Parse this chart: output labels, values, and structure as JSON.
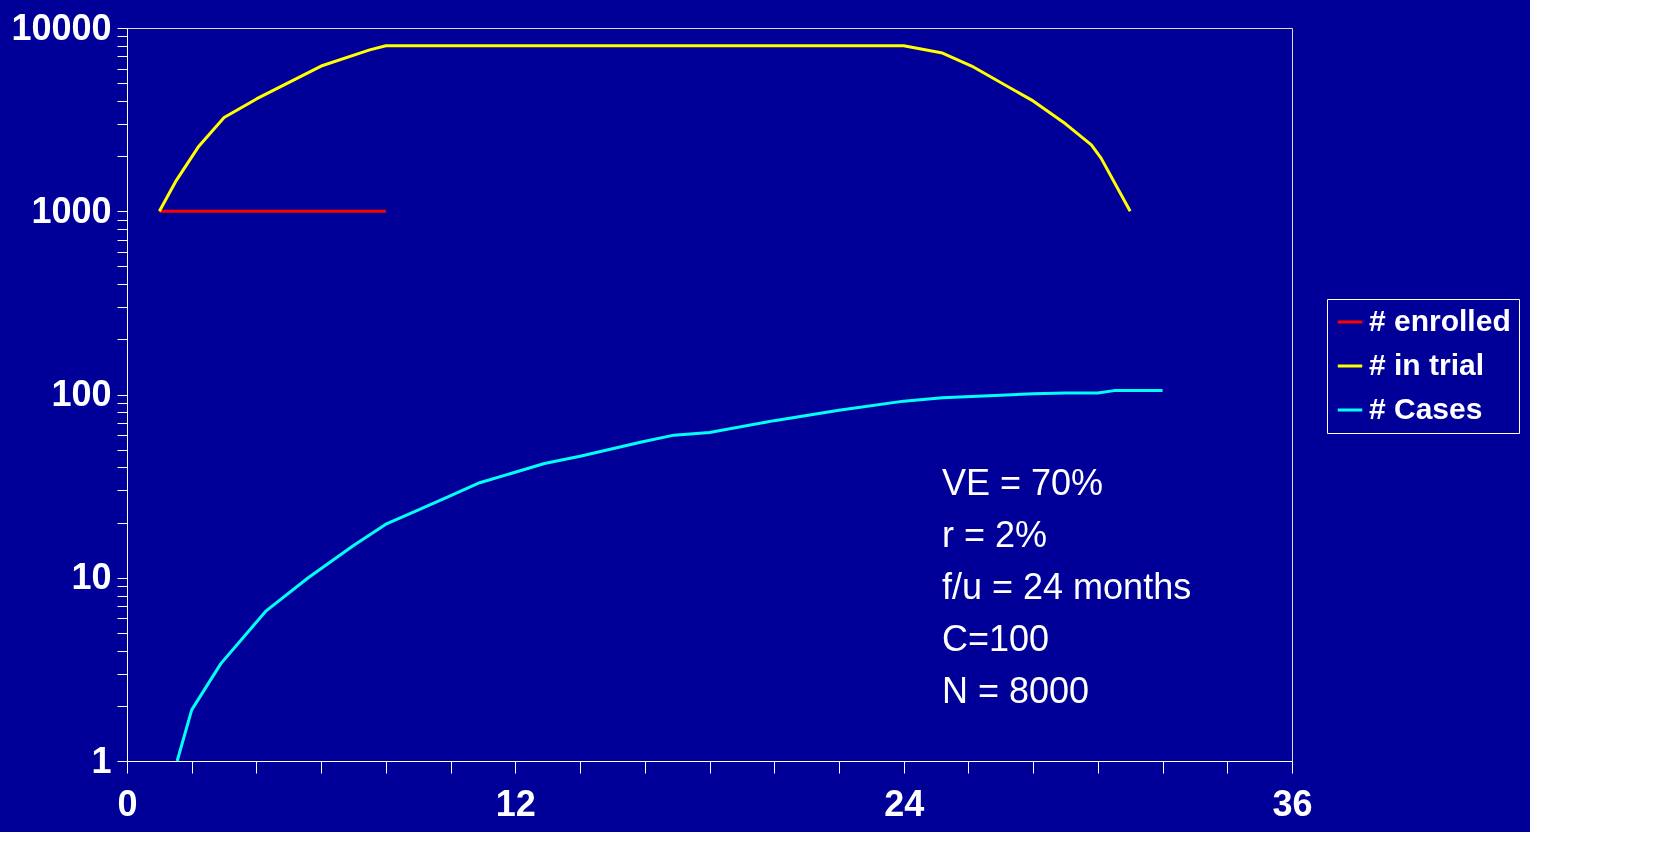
{
  "chart_data": {
    "type": "line",
    "xlim": [
      0,
      36
    ],
    "xticks": [
      0,
      {
        "value": 2,
        "label": null
      },
      {
        "value": 4,
        "label": null
      },
      {
        "value": 6,
        "label": null
      },
      {
        "value": 8,
        "label": null
      },
      {
        "value": 10,
        "label": null
      },
      12,
      {
        "value": 14,
        "label": null
      },
      {
        "value": 16,
        "label": null
      },
      {
        "value": 18,
        "label": null
      },
      {
        "value": 20,
        "label": null
      },
      {
        "value": 22,
        "label": null
      },
      24,
      {
        "value": 26,
        "label": null
      },
      {
        "value": 28,
        "label": null
      },
      {
        "value": 30,
        "label": null
      },
      {
        "value": 32,
        "label": null
      },
      {
        "value": 34,
        "label": null
      },
      36
    ],
    "ylim": [
      1,
      10000
    ],
    "yticks": [
      1,
      {
        "value": 2,
        "label": null
      },
      {
        "value": 3,
        "label": null
      },
      {
        "value": 4,
        "label": null
      },
      {
        "value": 5,
        "label": null
      },
      {
        "value": 6,
        "label": null
      },
      {
        "value": 7,
        "label": null
      },
      {
        "value": 8,
        "label": null
      },
      {
        "value": 9,
        "label": null
      },
      10,
      {
        "value": 20,
        "label": null
      },
      {
        "value": 30,
        "label": null
      },
      {
        "value": 40,
        "label": null
      },
      {
        "value": 50,
        "label": null
      },
      {
        "value": 60,
        "label": null
      },
      {
        "value": 70,
        "label": null
      },
      {
        "value": 80,
        "label": null
      },
      {
        "value": 90,
        "label": null
      },
      100,
      {
        "value": 200,
        "label": null
      },
      {
        "value": 300,
        "label": null
      },
      {
        "value": 400,
        "label": null
      },
      {
        "value": 500,
        "label": null
      },
      {
        "value": 600,
        "label": null
      },
      {
        "value": 700,
        "label": null
      },
      {
        "value": 800,
        "label": null
      },
      {
        "value": 900,
        "label": null
      },
      1000,
      {
        "value": 2000,
        "label": null
      },
      {
        "value": 3000,
        "label": null
      },
      {
        "value": 4000,
        "label": null
      },
      {
        "value": 5000,
        "label": null
      },
      {
        "value": 6000,
        "label": null
      },
      {
        "value": 7000,
        "label": null
      },
      {
        "value": 8000,
        "label": null
      },
      {
        "value": 9000,
        "label": null
      },
      10000
    ],
    "log": "y",
    "grid": false,
    "legend": "right",
    "marker": "none",
    "line_style": "solid",
    "series": [
      {
        "name": "# enrolled",
        "color": "#ff0000",
        "x": [
          1,
          8
        ],
        "values": [
          1000,
          1000
        ]
      },
      {
        "name": "# in trial",
        "color": "#ffff00",
        "x": [
          1,
          1.5,
          2.2,
          3,
          4,
          6,
          7.5,
          8,
          24,
          25.2,
          26.1,
          28,
          29,
          29.8,
          30.1,
          31
        ],
        "values": [
          1000,
          1450,
          2240,
          3250,
          4100,
          6200,
          7600,
          8000,
          8000,
          7300,
          6200,
          4000,
          3000,
          2300,
          1950,
          1000
        ]
      },
      {
        "name": "# Cases",
        "color": "#00ffff",
        "x": [
          1.55,
          2,
          2.9,
          4.3,
          5.6,
          7,
          8,
          9.9,
          10.9,
          12.9,
          14,
          15.9,
          16.9,
          18,
          20,
          22,
          24,
          25.2,
          28,
          29,
          30,
          30.5,
          32
        ],
        "values": [
          1,
          1.9,
          3.4,
          6.6,
          10,
          15,
          19.6,
          27.5,
          33,
          42,
          46,
          55,
          60,
          62,
          72,
          82,
          92,
          96,
          101,
          102,
          102,
          105,
          105
        ]
      }
    ],
    "annotations": [
      "VE = 70%",
      "r = 2%",
      "f/u = 24 months",
      "C=100",
      "N = 8000"
    ]
  }
}
